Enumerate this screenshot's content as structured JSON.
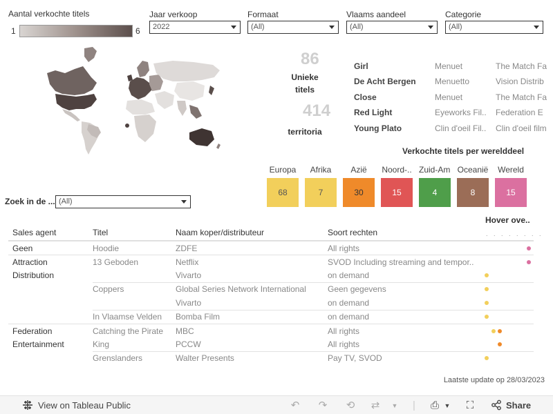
{
  "legend": {
    "title": "Aantal verkochte titels",
    "min": "1",
    "max": "6"
  },
  "filters": [
    {
      "label": "Jaar verkoop",
      "value": "2022"
    },
    {
      "label": "Formaat",
      "value": "(All)"
    },
    {
      "label": "Vlaams aandeel",
      "value": "(All)"
    },
    {
      "label": "Categorie",
      "value": "(All)"
    }
  ],
  "kpis": {
    "unique_titles": {
      "value": "86",
      "label_line1": "Unieke",
      "label_line2": "titels"
    },
    "territories": {
      "value": "414",
      "label": "territoria"
    }
  },
  "top_titles": [
    {
      "title": "Girl",
      "producer": "Menuet",
      "sales": "The Match Fa"
    },
    {
      "title": "De Acht Bergen",
      "producer": "Menuetto",
      "sales": "Vision Distrib"
    },
    {
      "title": "Close",
      "producer": "Menuet",
      "sales": "The Match Fa"
    },
    {
      "title": "Red Light",
      "producer": "Eyeworks Fil..",
      "sales": "Federation E"
    },
    {
      "title": "Young Plato",
      "producer": "Clin d'oeil Fil..",
      "sales": "Clin d'oeil film"
    }
  ],
  "continents": {
    "title": "Verkochte titels per werelddeel",
    "items": [
      {
        "name": "Europa",
        "value": "68",
        "color": "#f2cf5b",
        "text_color": "#555555"
      },
      {
        "name": "Afrika",
        "value": "7",
        "color": "#f2cf5b",
        "text_color": "#555555"
      },
      {
        "name": "Azië",
        "value": "30",
        "color": "#ef8a2a",
        "text_color": "#333333"
      },
      {
        "name": "Noord-..",
        "value": "15",
        "color": "#e05555",
        "text_color": "#ffffff"
      },
      {
        "name": "Zuid-Am..",
        "value": "4",
        "color": "#4f9e4a",
        "text_color": "#ffffff"
      },
      {
        "name": "Oceanië",
        "value": "8",
        "color": "#9b6d57",
        "text_color": "#ffffff"
      },
      {
        "name": "Wereld",
        "value": "15",
        "color": "#db70a0",
        "text_color": "#ffffff"
      }
    ]
  },
  "search": {
    "label": "Zoek in de ...",
    "value": "(All)"
  },
  "table": {
    "headers": [
      "Sales agent",
      "Titel",
      "Naam koper/distributeur",
      "Soort rechten"
    ],
    "hover_title": "Hover ove..",
    "hover_dots": ". . . . . . . .",
    "rows": [
      {
        "agent": "Geen",
        "title": "Hoodie",
        "buyer": "ZDFE",
        "rights": "All rights",
        "dots": [
          {
            "x": 61,
            "color": "#db70a0"
          }
        ]
      },
      {
        "agent": "Attraction",
        "title": "13 Geboden",
        "buyer": "Netflix",
        "rights": "SVOD Including streaming and tempor..",
        "dots": [
          {
            "x": 61,
            "color": "#db70a0"
          }
        ]
      },
      {
        "agent": "Distribution",
        "title": "",
        "buyer": "Vivarto",
        "rights": "on demand",
        "dots": [
          {
            "x": 0,
            "color": "#f2cf5b"
          }
        ]
      },
      {
        "agent": "",
        "title": "Coppers",
        "buyer": "Global Series Network International",
        "rights": "Geen gegevens",
        "dots": [
          {
            "x": 0,
            "color": "#f2cf5b"
          }
        ]
      },
      {
        "agent": "",
        "title": "",
        "buyer": "Vivarto",
        "rights": "on demand",
        "dots": [
          {
            "x": 0,
            "color": "#f2cf5b"
          }
        ]
      },
      {
        "agent": "",
        "title": "In Vlaamse Velden",
        "buyer": "Bomba Film",
        "rights": "on demand",
        "dots": [
          {
            "x": 0,
            "color": "#f2cf5b"
          }
        ]
      },
      {
        "agent": "Federation",
        "title": "Catching the Pirate",
        "buyer": "MBC",
        "rights": "All rights",
        "dots": [
          {
            "x": 10,
            "color": "#f2cf5b"
          },
          {
            "x": 19,
            "color": "#ef8a2a"
          }
        ]
      },
      {
        "agent": "Entertainment",
        "title": "King",
        "buyer": "PCCW",
        "rights": "All rights",
        "dots": [
          {
            "x": 19,
            "color": "#ef8a2a"
          }
        ]
      },
      {
        "agent": "",
        "title": "Grenslanders",
        "buyer": "Walter Presents",
        "rights": "Pay TV, SVOD",
        "dots": [
          {
            "x": 0,
            "color": "#f2cf5b"
          }
        ]
      }
    ]
  },
  "updated": "Laatste update op 28/03/2023",
  "toolbar": {
    "view_label": "View on Tableau Public",
    "share_label": "Share"
  },
  "icons": [
    "tableau-logo-icon",
    "undo-icon",
    "redo-icon",
    "revert-icon",
    "refresh-icon",
    "download-icon",
    "fullscreen-icon",
    "share-icon"
  ]
}
